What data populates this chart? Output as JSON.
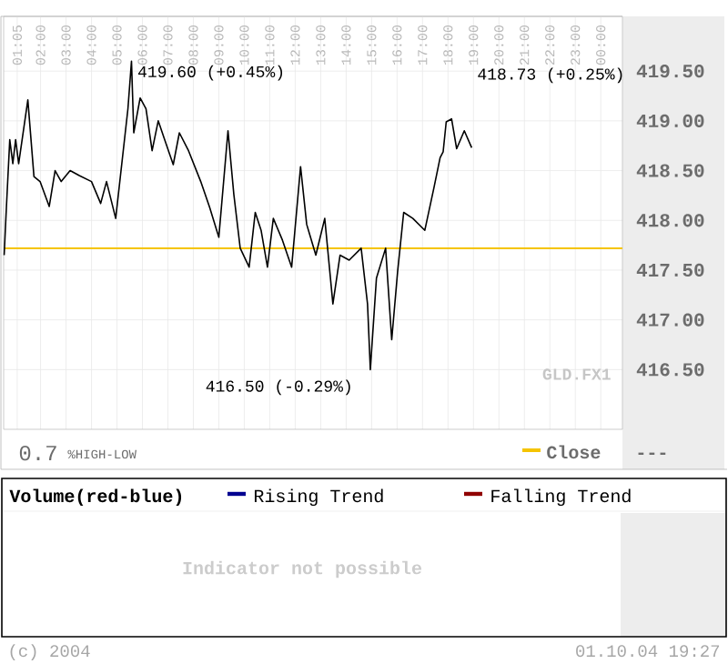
{
  "chart_data": [
    {
      "type": "line",
      "x": [
        0.57,
        0.66,
        0.79,
        0.91,
        1.02,
        1.14,
        1.5,
        1.74,
        1.98,
        2.34,
        2.57,
        2.81,
        3.16,
        3.52,
        4.0,
        4.36,
        4.59,
        4.95,
        5.19,
        5.43,
        5.57,
        5.66,
        5.91,
        6.14,
        6.38,
        6.62,
        6.86,
        7.21,
        7.45,
        7.81,
        8.29,
        8.64,
        9.0,
        9.36,
        9.59,
        9.84,
        10.19,
        10.43,
        10.66,
        10.91,
        11.14,
        11.5,
        11.86,
        12.21,
        12.45,
        12.81,
        13.16,
        13.48,
        13.76,
        14.12,
        14.59,
        14.84,
        14.95,
        15.19,
        15.55,
        15.79,
        16.02,
        16.26,
        16.62,
        17.09,
        17.45,
        17.69,
        17.81,
        17.93,
        18.14,
        18.34,
        18.64,
        18.93
      ],
      "series": [
        {
          "color": "#000000",
          "values": [
            417.65,
            418.14,
            418.81,
            418.57,
            418.81,
            418.57,
            419.21,
            418.44,
            418.39,
            418.14,
            418.5,
            418.39,
            418.5,
            418.45,
            418.39,
            418.17,
            418.39,
            418.02,
            418.57,
            419.12,
            419.6,
            418.88,
            419.23,
            419.12,
            418.7,
            419.0,
            418.82,
            418.56,
            418.88,
            418.7,
            418.39,
            418.13,
            417.83,
            418.9,
            418.26,
            417.72,
            417.53,
            418.08,
            417.9,
            417.53,
            418.02,
            417.8,
            417.53,
            418.54,
            417.96,
            417.65,
            418.02,
            417.16,
            417.65,
            417.6,
            417.72,
            417.16,
            416.5,
            417.42,
            417.72,
            416.8,
            417.48,
            418.08,
            418.02,
            417.9,
            418.33,
            418.63,
            418.69,
            418.99,
            419.02,
            418.72,
            418.9,
            418.73
          ]
        }
      ],
      "xlim": [
        0.55,
        24.85
      ],
      "xticks": [
        {
          "value": 1.0833,
          "label": "01:05"
        },
        {
          "value": 2,
          "label": "02:00"
        },
        {
          "value": 3,
          "label": "03:00"
        },
        {
          "value": 4,
          "label": "04:00"
        },
        {
          "value": 5,
          "label": "05:00"
        },
        {
          "value": 6,
          "label": "06:00"
        },
        {
          "value": 7,
          "label": "07:00"
        },
        {
          "value": 8,
          "label": "08:00"
        },
        {
          "value": 9,
          "label": "09:00"
        },
        {
          "value": 10,
          "label": "10:00"
        },
        {
          "value": 11,
          "label": "11:00"
        },
        {
          "value": 12,
          "label": "12:00"
        },
        {
          "value": 13,
          "label": "13:00"
        },
        {
          "value": 14,
          "label": "14:00"
        },
        {
          "value": 15,
          "label": "15:00"
        },
        {
          "value": 16,
          "label": "16:00"
        },
        {
          "value": 17,
          "label": "17:00"
        },
        {
          "value": 18,
          "label": "18:00"
        },
        {
          "value": 19,
          "label": "19:00"
        },
        {
          "value": 20,
          "label": "20:00"
        },
        {
          "value": 21,
          "label": "21:00"
        },
        {
          "value": 22,
          "label": "22:00"
        },
        {
          "value": 23,
          "label": "23:00"
        },
        {
          "value": 24,
          "label": "00:00"
        }
      ],
      "ylim": [
        415.9,
        420.05
      ],
      "yticks": [
        {
          "value": 416.5,
          "label": "416.50"
        },
        {
          "value": 417,
          "label": "417.00"
        },
        {
          "value": 417.5,
          "label": "417.50"
        },
        {
          "value": 418,
          "label": "418.00"
        },
        {
          "value": 418.5,
          "label": "418.50"
        },
        {
          "value": 419,
          "label": "419.00"
        },
        {
          "value": 419.5,
          "label": "419.50"
        }
      ],
      "grid": true,
      "ref_lines": [
        {
          "axis": "y",
          "value": 417.72,
          "label": "Close",
          "color": "#f5c400"
        }
      ],
      "annotations": [
        {
          "text": "419.60 (+0.45%)",
          "x": 5.57,
          "y": 419.6
        },
        {
          "text": "416.50 (-0.29%)",
          "x": 14.95,
          "y": 416.5
        },
        "418.73 (+0.25%)",
        "GLD.FX1",
        "0.7",
        "%HIGH-LOW",
        "---"
      ]
    },
    {
      "type": "other",
      "title": "Volume(red-blue)",
      "series": [
        {
          "name": "Rising Trend",
          "color": "#000090"
        },
        {
          "name": "Falling Trend",
          "color": "#900000"
        }
      ],
      "annotations": [
        "Indicator not possible",
        "(c) 2004",
        "01.10.04 19:27"
      ]
    }
  ]
}
